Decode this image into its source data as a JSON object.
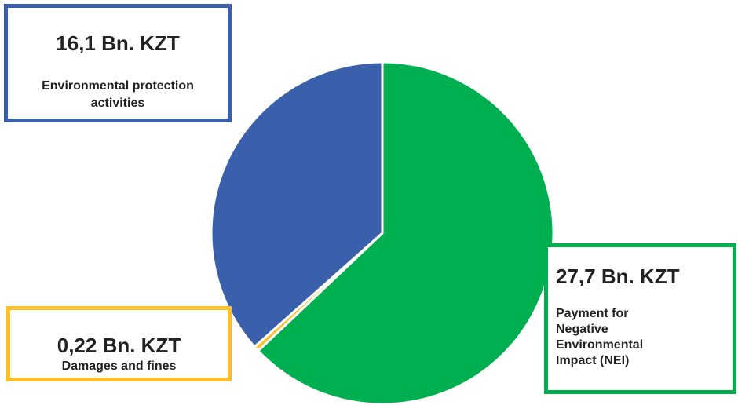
{
  "chart_data": {
    "type": "pie",
    "categories": [
      "Payment for Negative Environmental Impact (NEI)",
      "Damages and fines",
      "Environmental protection activities"
    ],
    "values": [
      27.7,
      0.22,
      16.1
    ],
    "value_labels": [
      "27,7 Bn. KZT",
      "0,22 Bn. KZT",
      "16,1 Bn. KZT"
    ],
    "colors": [
      "#00b050",
      "#fbc02d",
      "#3a5fab"
    ],
    "start_angle": 0,
    "direction": "clockwise"
  }
}
